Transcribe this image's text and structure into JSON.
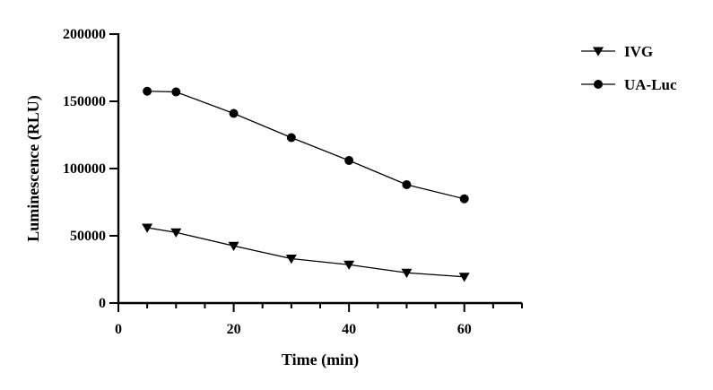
{
  "chart_data": {
    "type": "line",
    "title": "",
    "xlabel": "Time (min)",
    "ylabel": "Luminescence (RLU)",
    "xlim": [
      0,
      70
    ],
    "ylim": [
      0,
      200000
    ],
    "x_ticks": [
      0,
      20,
      40,
      60
    ],
    "x_tick_labels": [
      "0",
      "20",
      "40",
      "60"
    ],
    "y_ticks": [
      0,
      50000,
      100000,
      150000,
      200000
    ],
    "y_tick_labels": [
      "0",
      "50000",
      "100000",
      "150000",
      "200000"
    ],
    "x_minor_step": 5,
    "grid": false,
    "legend_position": "top-right",
    "series": [
      {
        "name": "IVG",
        "marker": "triangle-down",
        "color": "#000000",
        "x": [
          5,
          10,
          20,
          30,
          40,
          50,
          60
        ],
        "y": [
          56000,
          52500,
          42500,
          33000,
          28500,
          22500,
          19500
        ]
      },
      {
        "name": "UA-Luc",
        "marker": "circle",
        "color": "#000000",
        "x": [
          5,
          10,
          20,
          30,
          40,
          50,
          60
        ],
        "y": [
          157500,
          157000,
          141000,
          123000,
          106000,
          88000,
          77500
        ]
      }
    ]
  }
}
